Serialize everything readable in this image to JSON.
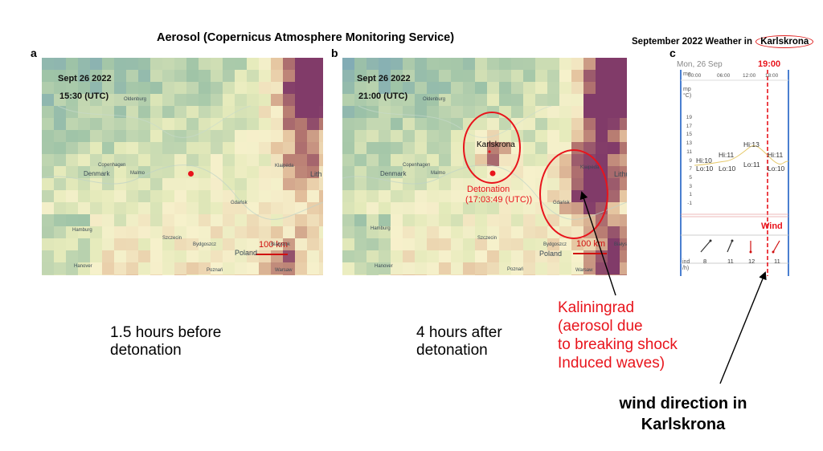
{
  "title": "Aerosol (Copernicus Atmosphere Monitoring Service)",
  "weather_title": {
    "prefix": "September 2022 Weather in",
    "city": "Karlskrona"
  },
  "panel_a": {
    "label": "a",
    "date": "Sept 26 2022",
    "time": "15:30 (UTC)",
    "scale": "100 km",
    "caption_line1": "1.5 hours before",
    "caption_line2": "detonation",
    "places": [
      "Denmark",
      "Copenhagen",
      "Malmo",
      "Hamburg",
      "Szczecin",
      "Gdańsk",
      "Klaipėda",
      "Bydgoszcz",
      "Białystok",
      "Poland",
      "Hanover",
      "Poznań",
      "Lith",
      "Warsaw",
      "Oldenburg"
    ]
  },
  "panel_b": {
    "label": "b",
    "date": "Sept 26 2022",
    "time": "21:00 (UTC)",
    "karlskrona": "Karlskrona",
    "detonation_line1": "Detonation",
    "detonation_line2": "(17:03:49 (UTC))",
    "scale": "100 km",
    "caption_line1": "4 hours after",
    "caption_line2": "detonation",
    "places": [
      "Denmark",
      "Copenhagen",
      "Malmo",
      "Hamburg",
      "Szczecin",
      "Bydgoszcz",
      "Białystok",
      "Poland",
      "Lithu",
      "Hanover",
      "Poznań",
      "Warsaw",
      "Oldenburg",
      "Klaipėda",
      "Gdańsk"
    ]
  },
  "panel_c": {
    "label": "c",
    "day": "Mon, 26 Sep",
    "highlight_time": "19:00",
    "times": [
      "00:00",
      "06:00",
      "12:00",
      "18:00"
    ],
    "temp_axis_label": [
      "mp",
      "°C)"
    ],
    "temp_ticks": [
      "19",
      "17",
      "15",
      "13",
      "11",
      "9",
      "7",
      "5",
      "3",
      "1",
      "-1"
    ],
    "hi": [
      "Hi:10",
      "Hi:11",
      "Hi:13",
      "Hi:11"
    ],
    "lo": [
      "Lo:10",
      "Lo:10",
      "Lo:11",
      "Lo:10"
    ],
    "wind_label": "Wind",
    "wind_speeds": [
      "8",
      "11",
      "12",
      "11"
    ],
    "wind_axis_label": [
      "ind",
      "/h)"
    ],
    "partial_left": "me"
  },
  "annotation_kaliningrad": [
    "Kaliningrad",
    "(aerosol due",
    "to breaking shock",
    "Induced waves)"
  ],
  "annotation_wind": [
    "wind direction in",
    "Karlskrona"
  ],
  "colors": {
    "accent_red": "#e8141c",
    "aerosol_low": "#5f93b7",
    "aerosol_mid": "#f3eec2",
    "aerosol_high": "#7a2d5a"
  }
}
